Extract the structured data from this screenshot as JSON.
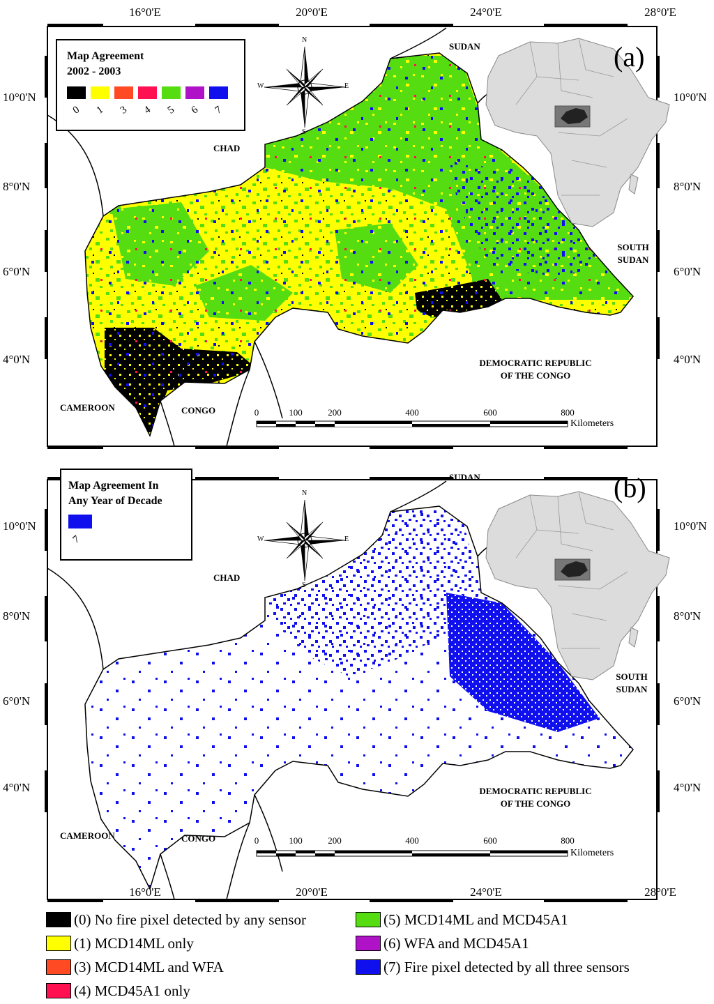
{
  "axes": {
    "top_lon": [
      "16°0'E",
      "20°0'E",
      "24°0'E",
      "28°0'E"
    ],
    "bottom_lon": [
      "16°0'E",
      "20°0'E",
      "24°0'E",
      "28°0'E"
    ],
    "left_lat": [
      "10°0'N",
      "8°0'N",
      "6°0'N",
      "4°0'N"
    ],
    "right_lat": [
      "10°0'N",
      "8°0'N",
      "6°0'N",
      "4°0'N"
    ]
  },
  "countries": {
    "sudan": "SUDAN",
    "chad": "CHAD",
    "south_sudan_1": "SOUTH",
    "south_sudan_2": "SUDAN",
    "drc_1": "DEMOCRATIC REPUBLIC",
    "drc_2": "OF THE CONGO",
    "cameroon": "CAMEROON",
    "congo": "CONGO"
  },
  "compass": {
    "n": "N",
    "s": "S",
    "e": "E",
    "w": "W"
  },
  "scale": {
    "ticks": [
      "0",
      "100",
      "200",
      "400",
      "600",
      "800"
    ],
    "unit": "Kilometers"
  },
  "panel_a": {
    "letter": "(a)",
    "legend_title_1": "Map Agreement",
    "legend_title_2": "2002 - 2003",
    "legend_values": [
      "0",
      "1",
      "3",
      "4",
      "5",
      "6",
      "7"
    ]
  },
  "panel_b": {
    "letter": "(b)",
    "legend_title_1": "Map Agreement In",
    "legend_title_2": "Any Year of Decade",
    "legend_values": [
      "7"
    ]
  },
  "colors": {
    "c0": "#000000",
    "c1": "#ffff00",
    "c3": "#ff4a23",
    "c4": "#ff1050",
    "c5": "#55dd11",
    "c6": "#b012c8",
    "c7": "#1010ee",
    "land": "#ffffff",
    "inset_land": "#dcdcdc",
    "inset_box": "#777777",
    "inset_car": "#222222"
  },
  "legend_items": [
    {
      "value": "0",
      "label": "(0) No fire pixel detected by any sensor"
    },
    {
      "value": "1",
      "label": "(1) MCD14ML only"
    },
    {
      "value": "3",
      "label": "(3) MCD14ML and WFA"
    },
    {
      "value": "4",
      "label": "(4) MCD45A1 only"
    },
    {
      "value": "5",
      "label": "(5) MCD14ML and MCD45A1"
    },
    {
      "value": "6",
      "label": "(6) WFA and MCD45A1"
    },
    {
      "value": "7",
      "label": "(7) Fire pixel detected by all three sensors"
    }
  ]
}
